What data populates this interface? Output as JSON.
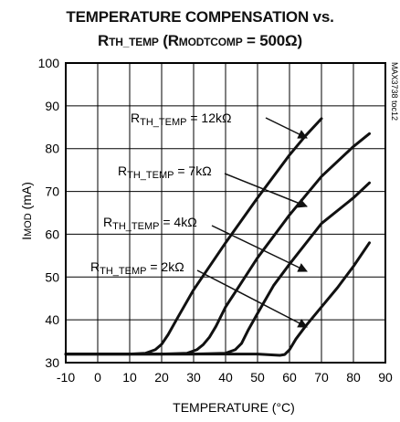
{
  "chart_data": {
    "type": "line",
    "title_line1": "TEMPERATURE COMPENSATION vs.",
    "title_line2": {
      "r": "R",
      "r_sub": "TH_TEMP",
      "open": " (R",
      "mod_sub": "MODTCOMP",
      "value": " = 500Ω)"
    },
    "xlabel": "TEMPERATURE (°C)",
    "ylabel": {
      "i": "I",
      "sub": "MOD",
      "unit": " (mA)"
    },
    "watermark": "MAX3738 toc12",
    "xlim": [
      -10,
      90
    ],
    "ylim": [
      30,
      100
    ],
    "xticks": [
      -10,
      0,
      10,
      20,
      30,
      40,
      50,
      60,
      70,
      80,
      90
    ],
    "yticks": [
      30,
      40,
      50,
      60,
      70,
      80,
      90,
      100
    ],
    "grid": true,
    "series": [
      {
        "name": "12kΩ",
        "label": {
          "r": "R",
          "sub": "TH_TEMP",
          "rest": " = 12kΩ"
        },
        "x": [
          -10,
          10,
          15,
          18,
          20,
          22,
          25,
          30,
          40,
          50,
          60,
          65,
          70
        ],
        "y": [
          32,
          32,
          32.2,
          33,
          34.3,
          36.5,
          40.5,
          47,
          58,
          68.5,
          78.5,
          83,
          87
        ]
      },
      {
        "name": "7kΩ",
        "label": {
          "r": "R",
          "sub": "TH_TEMP",
          "rest": " = 7kΩ"
        },
        "x": [
          -10,
          20,
          28,
          31,
          33,
          35,
          37,
          40,
          50,
          60,
          70,
          80,
          85
        ],
        "y": [
          32,
          32,
          32.2,
          33,
          34.2,
          36,
          38.5,
          43,
          54.5,
          64.5,
          73.5,
          80.5,
          83.5
        ]
      },
      {
        "name": "4kΩ",
        "label": {
          "r": "R",
          "sub": "TH_TEMP",
          "rest": " = 4kΩ"
        },
        "x": [
          -10,
          30,
          40,
          43,
          45,
          47,
          50,
          55,
          60,
          70,
          80,
          85
        ],
        "y": [
          32,
          32,
          32.2,
          33,
          34.5,
          37.5,
          41.5,
          48,
          53,
          62.5,
          68.5,
          72
        ]
      },
      {
        "name": "2kΩ",
        "label": {
          "r": "R",
          "sub": "TH_TEMP",
          "rest": " = 2kΩ"
        },
        "x": [
          -10,
          50,
          55,
          57,
          58.5,
          60,
          62,
          65,
          70,
          75,
          80,
          85
        ],
        "y": [
          32,
          32,
          31.8,
          31.7,
          31.9,
          33,
          35.5,
          38.5,
          43,
          47.5,
          52.5,
          58
        ]
      }
    ]
  }
}
